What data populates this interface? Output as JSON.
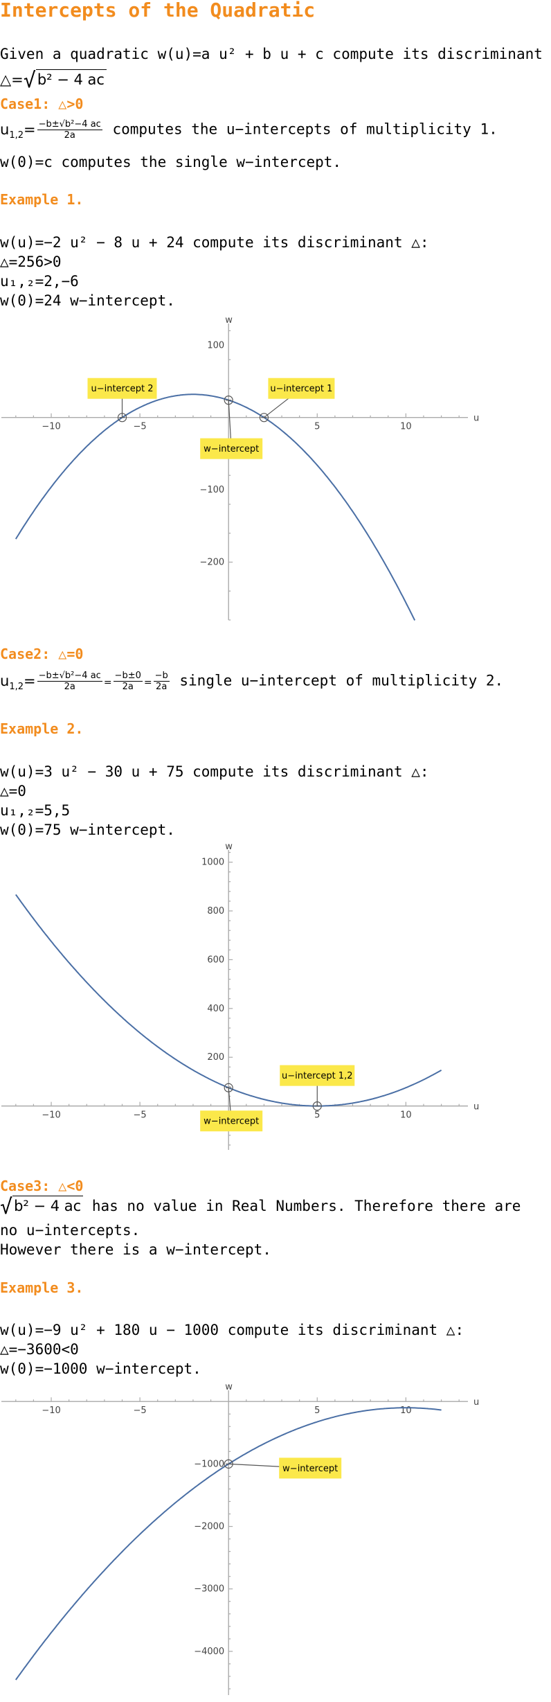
{
  "title": "Intercepts of the Quadratic",
  "intro": {
    "line1": "Given a quadratic w(u)=a u² + b u + c compute its discriminant △:",
    "disc_lhs": "△=",
    "disc_rad": "b² − 4 ac"
  },
  "case1": {
    "heading": "Case1: △>0",
    "formula_lhs": "u",
    "formula_sub": "1,2",
    "formula_eq": "=",
    "num": "−b±√b²−4 ac",
    "den": "2a",
    "line1_text": " computes the u−intercepts of multiplicity 1.",
    "line2": "w(0)=c computes the single w−intercept."
  },
  "example1": {
    "heading": "Example 1.",
    "line1": "w(u)=−2 u² − 8 u + 24 compute its discriminant △:",
    "line2": "△=256>0",
    "line3": "u₁,₂=2,−6",
    "line4": "w(0)=24 w−intercept."
  },
  "case2": {
    "heading": "Case2: △=0",
    "formula_lhs": "u",
    "formula_sub": "1,2",
    "formula_eq": "=",
    "num1": "−b±√b²−4 ac",
    "den1": "2a",
    "num2": "−b±0",
    "den2": "2a",
    "num3": "−b",
    "den3": "2a",
    "line_text": " single u−intercept of multiplicity 2."
  },
  "example2": {
    "heading": "Example 2.",
    "line1": "w(u)=3 u² − 30 u + 75 compute its discriminant △:",
    "line2": "△=0",
    "line3": "u₁,₂=5,5",
    "line4": "w(0)=75 w−intercept."
  },
  "case3": {
    "heading": "Case3: △<0",
    "rad": "b² − 4 ac",
    "line1_text": " has no value in Real Numbers. Therefore there are",
    "line2": "no u−intercepts.",
    "line3": "However there is a w−intercept."
  },
  "example3": {
    "heading": "Example 3.",
    "line1": "w(u)=−9 u² + 180 u − 1000 compute its discriminant △:",
    "line2": "△=−3600<0",
    "line3": "w(0)=−1000 w−intercept."
  },
  "chart_data": [
    {
      "type": "line",
      "function": "w(u) = -2u^2 - 8u + 24",
      "coefficients": {
        "a": -2,
        "b": -8,
        "c": 24
      },
      "xlabel": "u",
      "ylabel": "w",
      "xlim": [
        -12.5,
        13.5
      ],
      "ylim": [
        -280,
        130
      ],
      "xticks": [
        -10,
        -5,
        5,
        10
      ],
      "xtick_labels": [
        "−10",
        "−5",
        "5",
        "10"
      ],
      "yticks": [
        100,
        -100,
        -200
      ],
      "ytick_labels": [
        "100",
        "−100",
        "−200"
      ],
      "curve_range": [
        -12,
        10.5
      ],
      "points": [
        {
          "x": 2,
          "y": 0,
          "label": "u−intercept 1"
        },
        {
          "x": -6,
          "y": 0,
          "label": "u−intercept 2"
        },
        {
          "x": 0,
          "y": 24,
          "label": "w−intercept"
        }
      ]
    },
    {
      "type": "line",
      "function": "w(u) = 3u^2 - 30u + 75",
      "coefficients": {
        "a": 3,
        "b": -30,
        "c": 75
      },
      "xlabel": "u",
      "ylabel": "w",
      "xlim": [
        -12.5,
        13.5
      ],
      "ylim": [
        -180,
        1050
      ],
      "xticks": [
        -10,
        -5,
        5,
        10
      ],
      "xtick_labels": [
        "−10",
        "−5",
        "5",
        "10"
      ],
      "yticks": [
        200,
        400,
        600,
        800,
        1000
      ],
      "ytick_labels": [
        "200",
        "400",
        "600",
        "800",
        "1000"
      ],
      "curve_range": [
        -12,
        12
      ],
      "points": [
        {
          "x": 5,
          "y": 0,
          "label": "u−intercept 1,2"
        },
        {
          "x": 0,
          "y": 75,
          "label": "w−intercept"
        }
      ]
    },
    {
      "type": "line",
      "function": "w(u) = -9u^2 + 180u - 1000",
      "coefficients": {
        "a": -9,
        "b": 180,
        "c": -1000
      },
      "xlabel": "u",
      "ylabel": "w",
      "xlim": [
        -12.5,
        13.5
      ],
      "ylim": [
        -4700,
        180
      ],
      "xticks": [
        -10,
        -5,
        5,
        10
      ],
      "xtick_labels": [
        "−10",
        "−5",
        "5",
        "10"
      ],
      "yticks": [
        -1000,
        -2000,
        -3000,
        -4000
      ],
      "ytick_labels": [
        "−1000",
        "−2000",
        "−3000",
        "−4000"
      ],
      "curve_range": [
        -12,
        12
      ],
      "points": [
        {
          "x": 0,
          "y": -1000,
          "label": "w−intercept"
        }
      ]
    }
  ]
}
